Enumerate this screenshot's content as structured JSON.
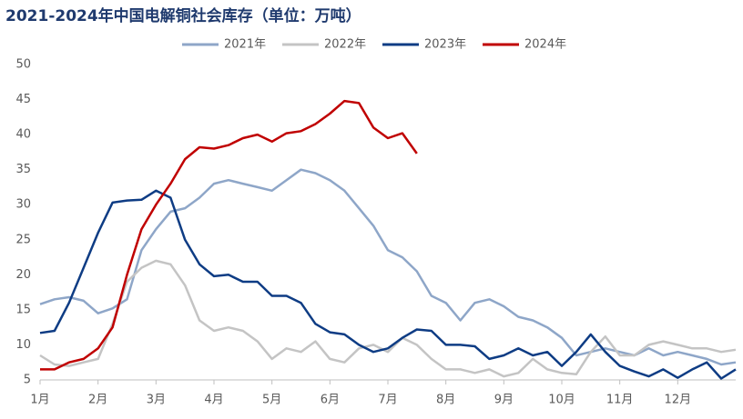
{
  "chart_data": {
    "type": "line",
    "title": "2021-2024年中国电解铜社会库存（单位：万吨）",
    "x": [
      1,
      1.25,
      1.5,
      1.75,
      2,
      2.25,
      2.5,
      2.75,
      3,
      3.25,
      3.5,
      3.75,
      4,
      4.25,
      4.5,
      4.75,
      5,
      5.25,
      5.5,
      5.75,
      6,
      6.25,
      6.5,
      6.75,
      7,
      7.25,
      7.5,
      7.75,
      8,
      8.25,
      8.5,
      8.75,
      9,
      9.25,
      9.5,
      9.75,
      10,
      10.25,
      10.5,
      10.75,
      11,
      11.25,
      11.5,
      11.75,
      12,
      12.25,
      12.5,
      12.75,
      13
    ],
    "xlim": [
      1,
      13
    ],
    "xticks": [
      {
        "value": 1,
        "label": "1月"
      },
      {
        "value": 2,
        "label": "2月"
      },
      {
        "value": 3,
        "label": "3月"
      },
      {
        "value": 4,
        "label": "4月"
      },
      {
        "value": 5,
        "label": "5月"
      },
      {
        "value": 6,
        "label": "6月"
      },
      {
        "value": 7,
        "label": "7月"
      },
      {
        "value": 8,
        "label": "8月"
      },
      {
        "value": 9,
        "label": "9月"
      },
      {
        "value": 10,
        "label": "10月"
      },
      {
        "value": 11,
        "label": "11月"
      },
      {
        "value": 12,
        "label": "12月"
      }
    ],
    "ylim": [
      5,
      50
    ],
    "yticks": [
      5,
      10,
      15,
      20,
      25,
      30,
      35,
      40,
      45,
      50
    ],
    "series": [
      {
        "name": "2021年",
        "color": "#8EA6C8",
        "values": [
          15.8,
          16.5,
          16.8,
          16.3,
          14.5,
          15.2,
          16.5,
          23.5,
          26.5,
          29,
          29.5,
          31,
          33,
          33.5,
          33,
          32.5,
          32,
          33.5,
          35,
          34.5,
          33.5,
          32,
          29.5,
          27,
          23.5,
          22.5,
          20.5,
          17,
          16,
          13.5,
          16,
          16.5,
          15.5,
          14,
          13.5,
          12.5,
          11,
          8.5,
          9,
          9.5,
          9,
          8.5,
          9.5,
          8.5,
          9,
          8.5,
          8,
          7.2,
          7.5
        ]
      },
      {
        "name": "2022年",
        "color": "#C4C4C4",
        "values": [
          8.5,
          7.2,
          7,
          7.5,
          8,
          13,
          19,
          21,
          22,
          21.5,
          18.5,
          13.5,
          12,
          12.5,
          12,
          10.5,
          8,
          9.5,
          9,
          10.5,
          8,
          7.5,
          9.5,
          10,
          9,
          11,
          10,
          8,
          6.5,
          6.5,
          6,
          6.5,
          5.5,
          6,
          8,
          6.5,
          6,
          5.8,
          9,
          11.2,
          8.5,
          8.5,
          10,
          10.5,
          10,
          9.5,
          9.5,
          9,
          9.3
        ]
      },
      {
        "name": "2023年",
        "color": "#0E3C84",
        "values": [
          11.7,
          12,
          16,
          21,
          26,
          30.3,
          30.6,
          30.7,
          32,
          31,
          25,
          21.5,
          19.8,
          20,
          19,
          19,
          17,
          17,
          16,
          13,
          11.8,
          11.5,
          10,
          9,
          9.5,
          11,
          12.2,
          12,
          10,
          10,
          9.8,
          8,
          8.5,
          9.5,
          8.5,
          9,
          7,
          9,
          11.5,
          9,
          7,
          6.2,
          5.5,
          6.5,
          5.3,
          6.5,
          7.5,
          5.2,
          6.5
        ]
      },
      {
        "name": "2024年",
        "color": "#C00000",
        "values": [
          6.5,
          6.5,
          7.5,
          8,
          9.5,
          12.5,
          20,
          26.5,
          30,
          33,
          36.5,
          38.2,
          38,
          38.5,
          39.5,
          40,
          39,
          40.2,
          40.5,
          41.5,
          43,
          44.8,
          44.5,
          41,
          39.5,
          40.2,
          37.3,
          null,
          null,
          null,
          null,
          null,
          null,
          null,
          null,
          null,
          null,
          null,
          null,
          null,
          null,
          null,
          null,
          null,
          null,
          null,
          null,
          null,
          null
        ]
      }
    ]
  }
}
